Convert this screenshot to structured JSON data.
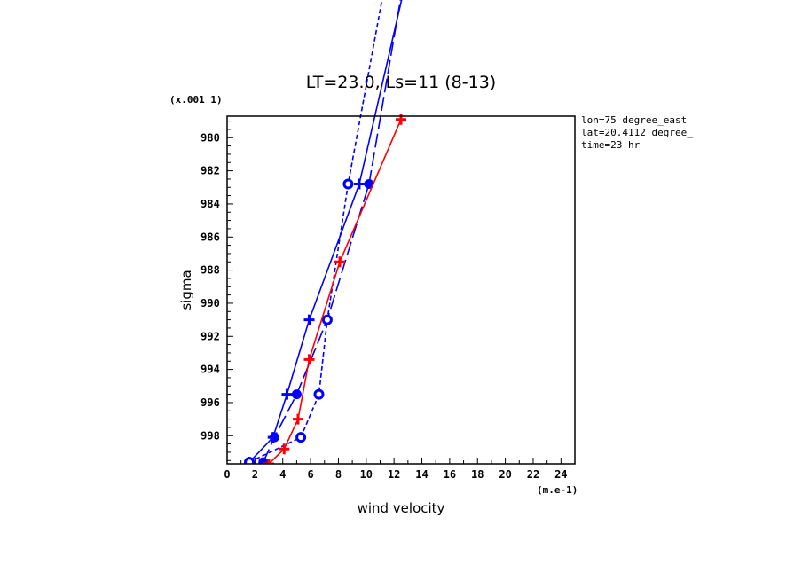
{
  "chart_data": {
    "type": "line",
    "title": "LT=23.0, Ls=11 (8-13)",
    "xlabel": "wind velocity",
    "ylabel": "sigma",
    "x_units": "(m.e-1)",
    "y_scale_label": "(x.001 1)",
    "annotations": [
      "lon=75 degree_east",
      "lat=20.4112 degree_",
      "time=23 hr"
    ],
    "xlim": [
      0,
      25
    ],
    "ylim": [
      999.7,
      978.7
    ],
    "x_ticks": [
      0,
      2,
      4,
      6,
      8,
      10,
      12,
      14,
      16,
      18,
      20,
      22,
      24
    ],
    "y_ticks": [
      980,
      982,
      984,
      986,
      988,
      990,
      992,
      994,
      996,
      998
    ],
    "series": [
      {
        "color": "#0000ff",
        "dash": "solid",
        "marker": "plus",
        "points": [
          [
            1.6,
            999.6
          ],
          [
            3.3,
            998.1
          ],
          [
            4.3,
            995.5
          ],
          [
            5.9,
            991.0
          ],
          [
            9.5,
            982.8
          ],
          [
            13.0,
            970.0
          ]
        ]
      },
      {
        "color": "#0000ff",
        "dash": "long",
        "marker": "circle",
        "points": [
          [
            2.6,
            999.6
          ],
          [
            3.4,
            998.1
          ],
          [
            5.0,
            995.5
          ],
          [
            7.2,
            991.0
          ],
          [
            10.2,
            982.8
          ],
          [
            12.8,
            970.0
          ]
        ]
      },
      {
        "color": "#0000ff",
        "dash": "short",
        "marker": "ring",
        "points": [
          [
            1.6,
            999.6
          ],
          [
            5.3,
            998.1
          ],
          [
            6.6,
            995.5
          ],
          [
            7.2,
            991.0
          ],
          [
            8.7,
            982.8
          ],
          [
            11.5,
            970.0
          ]
        ]
      },
      {
        "color": "#ff0000",
        "dash": "solid",
        "marker": "plus",
        "points": [
          [
            3.0,
            999.7
          ],
          [
            4.1,
            998.8
          ],
          [
            5.1,
            997.0
          ],
          [
            5.9,
            993.4
          ],
          [
            8.1,
            987.5
          ],
          [
            12.5,
            978.9
          ]
        ]
      }
    ]
  }
}
